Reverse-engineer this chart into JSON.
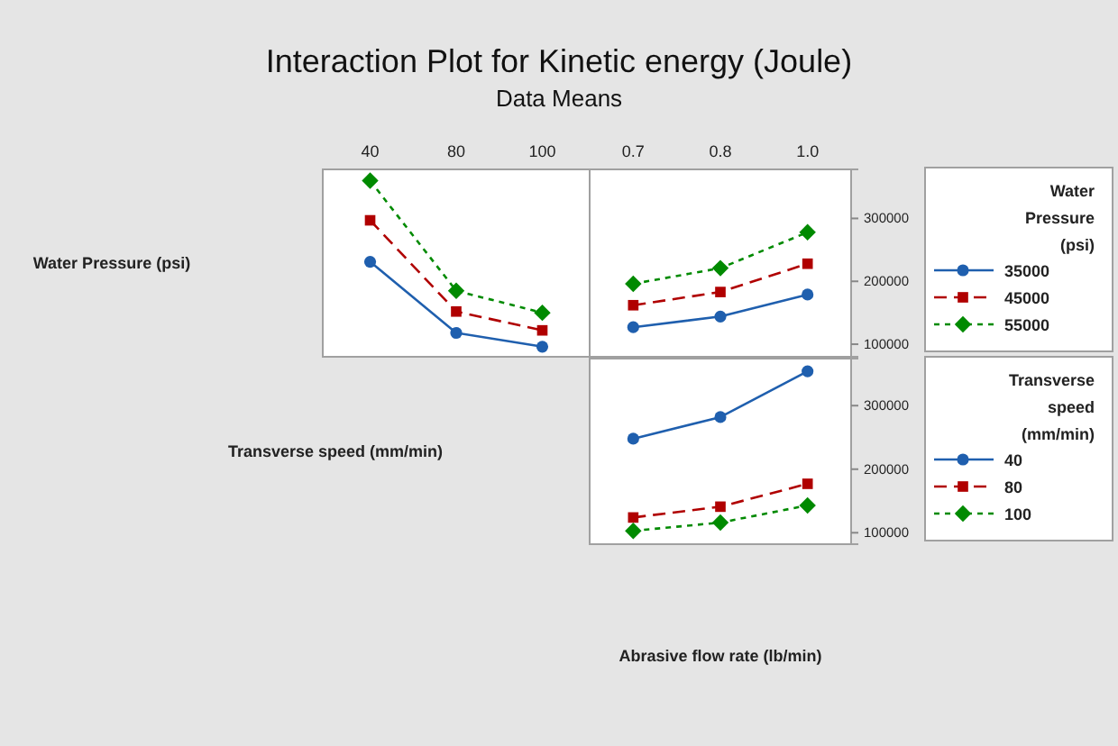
{
  "chart_data": [
    {
      "type": "line",
      "title": "Interaction Plot for Kinetic energy (Joule)",
      "subtitle": "Data Means",
      "ylabel": "Water Pressure (psi)",
      "categories": [
        "40",
        "80",
        "100"
      ],
      "ylim": [
        80000,
        378000
      ],
      "tick_labels": "x",
      "series": [
        {
          "color": "#1f5fae",
          "marker": "circle",
          "line_style": "solid",
          "values": [
            231000,
            118000,
            96000
          ]
        },
        {
          "color": "#b00000",
          "marker": "square",
          "line_style": "dashed",
          "values": [
            297000,
            152000,
            122000
          ]
        },
        {
          "color": "#008a00",
          "marker": "diamond",
          "line_style": "dotted",
          "values": [
            360000,
            185000,
            150000
          ]
        }
      ]
    },
    {
      "type": "line",
      "legend": "right",
      "legend_title": "Water Pressure (psi)",
      "categories": [
        "0.7",
        "0.8",
        "1.0"
      ],
      "ylim": [
        80000,
        378000
      ],
      "yticks": [
        100000,
        200000,
        300000
      ],
      "series": [
        {
          "name": "35000",
          "color": "#1f5fae",
          "marker": "circle",
          "line_style": "solid",
          "values": [
            127000,
            144000,
            179000
          ]
        },
        {
          "name": "45000",
          "color": "#b00000",
          "marker": "square",
          "line_style": "dashed",
          "values": [
            162000,
            183000,
            228000
          ]
        },
        {
          "name": "55000",
          "color": "#008a00",
          "marker": "diamond",
          "line_style": "dotted",
          "values": [
            196000,
            221000,
            278000
          ]
        }
      ]
    },
    {
      "type": "line",
      "legend": "right",
      "legend_title": "Transverse speed (mm/min)",
      "ylabel": "Transverse speed (mm/min)",
      "xlabel": "Abrasive flow rate (lb/min)",
      "categories": [
        null,
        null,
        null
      ],
      "ylim": [
        82000,
        374000
      ],
      "yticks": [
        100000,
        200000,
        300000
      ],
      "tick_labels": "y",
      "series": [
        {
          "name": "40",
          "color": "#1f5fae",
          "marker": "circle",
          "line_style": "solid",
          "values": [
            248000,
            282000,
            354000
          ]
        },
        {
          "name": "80",
          "color": "#b00000",
          "marker": "square",
          "line_style": "dashed",
          "values": [
            124000,
            141000,
            177000
          ]
        },
        {
          "name": "100",
          "color": "#008a00",
          "marker": "diamond",
          "line_style": "dotted",
          "values": [
            103000,
            116000,
            143000
          ]
        }
      ]
    }
  ]
}
